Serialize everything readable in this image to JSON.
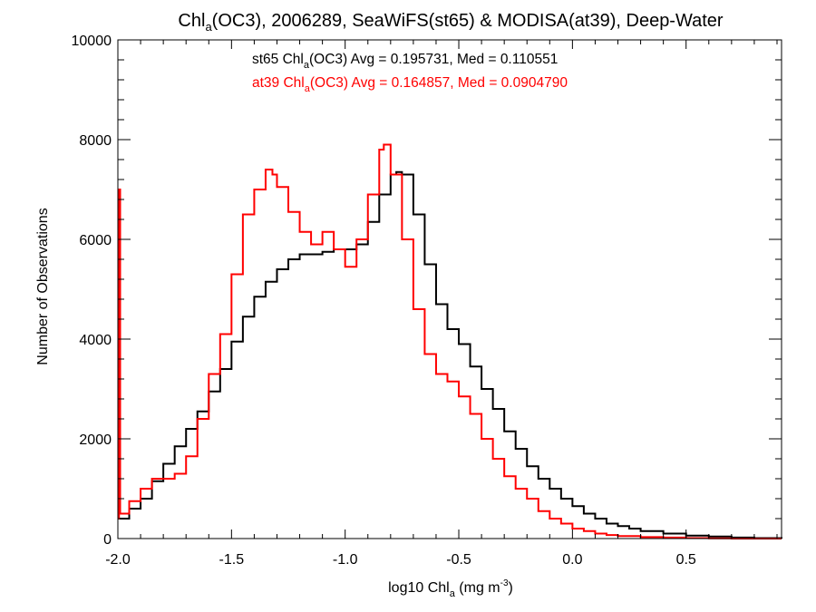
{
  "chart_data": {
    "type": "line",
    "title": {
      "pre": "Chl",
      "sub": "a",
      "post": "(OC3), 2006289, SeaWiFS(st65) & MODISA(at39), Deep-Water"
    },
    "xlabel": {
      "pre": "log10 Chl",
      "sub": "a",
      "mid": " (mg m",
      "sup": "-3",
      "post": ")"
    },
    "ylabel": "Number of Observations",
    "xlim": [
      -2.0,
      0.92
    ],
    "ylim": [
      0,
      10000
    ],
    "x_ticks": [
      "-2.0",
      "-1.5",
      "-1.0",
      "-0.5",
      "0.0",
      "0.5"
    ],
    "y_ticks": [
      "0",
      "2000",
      "4000",
      "6000",
      "8000",
      "10000"
    ],
    "legend_position": "top-center",
    "series": [
      {
        "name": "st65",
        "color": "#000000",
        "label": {
          "pre": "st65 Chl",
          "sub": "a",
          "post": "(OC3) Avg = 0.195731, Med = 0.110551"
        },
        "x": [
          -2.0,
          -1.95,
          -1.9,
          -1.85,
          -1.8,
          -1.75,
          -1.7,
          -1.65,
          -1.6,
          -1.55,
          -1.5,
          -1.45,
          -1.4,
          -1.35,
          -1.3,
          -1.25,
          -1.2,
          -1.15,
          -1.1,
          -1.05,
          -1.0,
          -0.95,
          -0.9,
          -0.85,
          -0.8,
          -0.775,
          -0.75,
          -0.7,
          -0.65,
          -0.6,
          -0.55,
          -0.5,
          -0.45,
          -0.4,
          -0.35,
          -0.3,
          -0.25,
          -0.2,
          -0.15,
          -0.1,
          -0.05,
          0.0,
          0.05,
          0.1,
          0.15,
          0.2,
          0.25,
          0.3,
          0.4,
          0.5,
          0.6,
          0.7,
          0.8,
          0.92
        ],
        "y": [
          400,
          600,
          800,
          1150,
          1500,
          1850,
          2200,
          2550,
          2950,
          3400,
          3950,
          4450,
          4850,
          5150,
          5400,
          5600,
          5700,
          5700,
          5750,
          5800,
          5800,
          5900,
          6350,
          6900,
          7300,
          7350,
          7300,
          6500,
          5500,
          4700,
          4200,
          3900,
          3450,
          3000,
          2600,
          2150,
          1800,
          1450,
          1200,
          1000,
          800,
          650,
          500,
          400,
          300,
          250,
          200,
          150,
          100,
          60,
          40,
          20,
          10,
          0
        ]
      },
      {
        "name": "at39",
        "color": "#ff0000",
        "label": {
          "pre": "at39 Chl",
          "sub": "a",
          "post": "(OC3) Avg = 0.164857, Med = 0.0904790"
        },
        "x": [
          -2.0,
          -1.995,
          -1.99,
          -1.95,
          -1.9,
          -1.85,
          -1.8,
          -1.75,
          -1.7,
          -1.65,
          -1.6,
          -1.55,
          -1.5,
          -1.45,
          -1.4,
          -1.35,
          -1.32,
          -1.3,
          -1.25,
          -1.2,
          -1.15,
          -1.1,
          -1.05,
          -1.0,
          -0.95,
          -0.9,
          -0.85,
          -0.83,
          -0.8,
          -0.75,
          -0.7,
          -0.65,
          -0.6,
          -0.55,
          -0.5,
          -0.45,
          -0.4,
          -0.35,
          -0.3,
          -0.25,
          -0.2,
          -0.15,
          -0.1,
          -0.05,
          0.0,
          0.05,
          0.1,
          0.15,
          0.2,
          0.3,
          0.4,
          0.5,
          0.6,
          0.7,
          0.8,
          0.92
        ],
        "y": [
          400,
          7000,
          500,
          750,
          1000,
          1200,
          1200,
          1300,
          1650,
          2400,
          3300,
          4100,
          5300,
          6500,
          7000,
          7400,
          7300,
          7050,
          6550,
          6150,
          5900,
          6150,
          5800,
          5450,
          6000,
          6900,
          7800,
          7900,
          7300,
          6000,
          4600,
          3700,
          3300,
          3150,
          2850,
          2500,
          2000,
          1600,
          1250,
          1000,
          800,
          550,
          400,
          300,
          200,
          150,
          100,
          70,
          50,
          30,
          20,
          10,
          5,
          0,
          0,
          0
        ]
      }
    ]
  }
}
